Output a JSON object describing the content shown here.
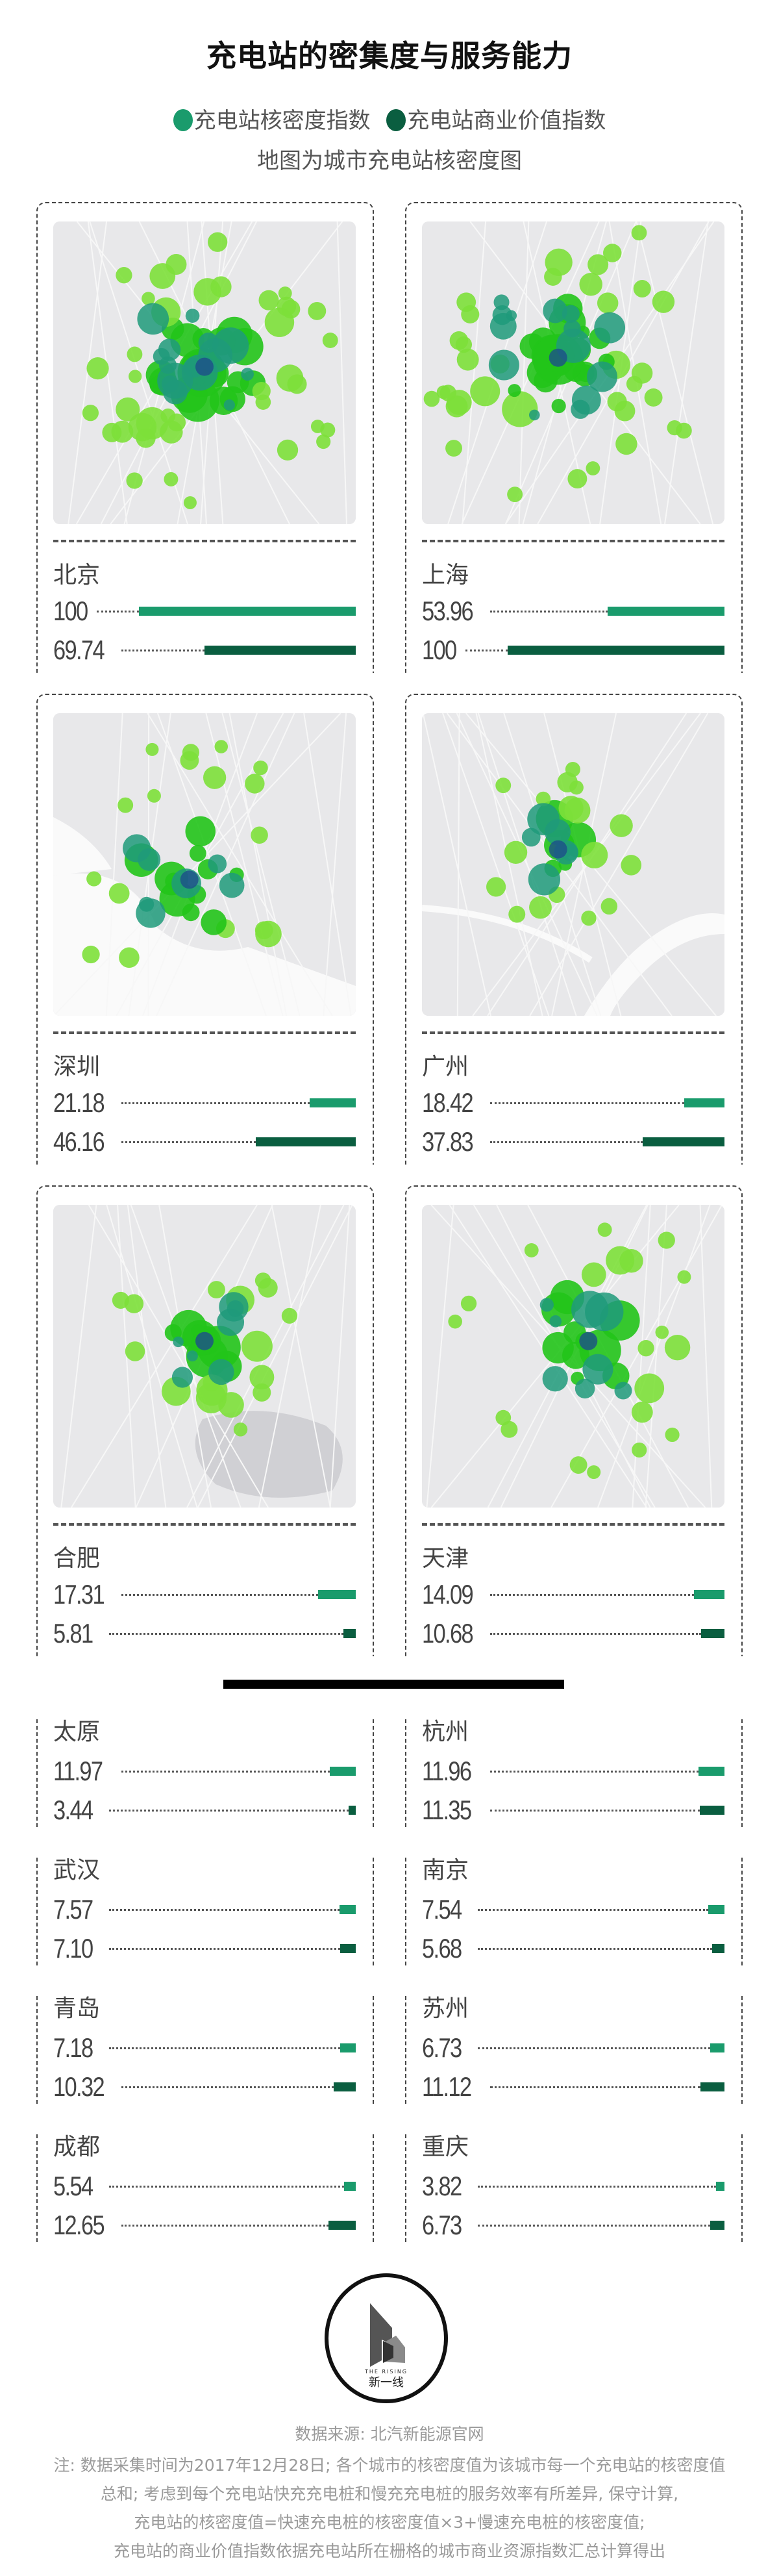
{
  "title": "充电站的密集度与服务能力",
  "legend": [
    {
      "label": "充电站核密度指数",
      "color": "#1a9b6c"
    },
    {
      "label": "充电站商业价值指数",
      "color": "#0a5e40"
    }
  ],
  "subtitle": "地图为城市充电站核密度图",
  "chart_data": {
    "type": "bar",
    "orientation": "horizontal",
    "xlim": [
      0,
      100
    ],
    "series": [
      {
        "name": "充电站核密度指数",
        "color": "#1a9b6c",
        "values": [
          100,
          53.96,
          21.18,
          18.42,
          17.31,
          14.09,
          11.97,
          11.96,
          7.57,
          7.54,
          7.18,
          6.73,
          5.54,
          3.82
        ]
      },
      {
        "name": "充电站商业价值指数",
        "color": "#0a5e40",
        "values": [
          69.74,
          100,
          46.16,
          37.83,
          5.81,
          10.68,
          3.44,
          11.35,
          7.1,
          5.68,
          10.32,
          11.12,
          12.65,
          6.73
        ]
      }
    ],
    "categories": [
      "北京",
      "上海",
      "深圳",
      "广州",
      "合肥",
      "天津",
      "太原",
      "杭州",
      "武汉",
      "南京",
      "青岛",
      "苏州",
      "成都",
      "重庆"
    ]
  },
  "cities": [
    {
      "name": "北京",
      "density": "100",
      "value": "69.74",
      "map": "beijing"
    },
    {
      "name": "上海",
      "density": "53.96",
      "value": "100",
      "map": "shanghai"
    },
    {
      "name": "深圳",
      "density": "21.18",
      "value": "46.16",
      "map": "shenzhen"
    },
    {
      "name": "广州",
      "density": "18.42",
      "value": "37.83",
      "map": "guangzhou"
    },
    {
      "name": "合肥",
      "density": "17.31",
      "value": "5.81",
      "map": "hefei"
    },
    {
      "name": "天津",
      "density": "14.09",
      "value": "10.68",
      "map": "tianjin"
    },
    {
      "name": "太原",
      "density": "11.97",
      "value": "3.44"
    },
    {
      "name": "杭州",
      "density": "11.96",
      "value": "11.35"
    },
    {
      "name": "武汉",
      "density": "7.57",
      "value": "7.10"
    },
    {
      "name": "南京",
      "density": "7.54",
      "value": "5.68"
    },
    {
      "name": "青岛",
      "density": "7.18",
      "value": "10.32"
    },
    {
      "name": "苏州",
      "density": "6.73",
      "value": "11.12"
    },
    {
      "name": "成都",
      "density": "5.54",
      "value": "12.65"
    },
    {
      "name": "重庆",
      "density": "3.82",
      "value": "6.73"
    }
  ],
  "logo": {
    "text_en": "THE RISING",
    "text_cn": "新一线"
  },
  "source": "数据来源: 北汽新能源官网",
  "notes": [
    "注: 数据采集时间为2017年12月28日; 各个城市的核密度值为该城市每一个充电站的核密度值",
    "总和; 考虑到每个充电站快充充电桩和慢充充电桩的服务效率有所差异, 保守计算,",
    "充电站的核密度值=快速充电桩的核密度值×3+慢速充电桩的核密度值;",
    "充电站的商业价值指数依据充电站所在栅格的城市商业资源指数汇总计算得出"
  ]
}
